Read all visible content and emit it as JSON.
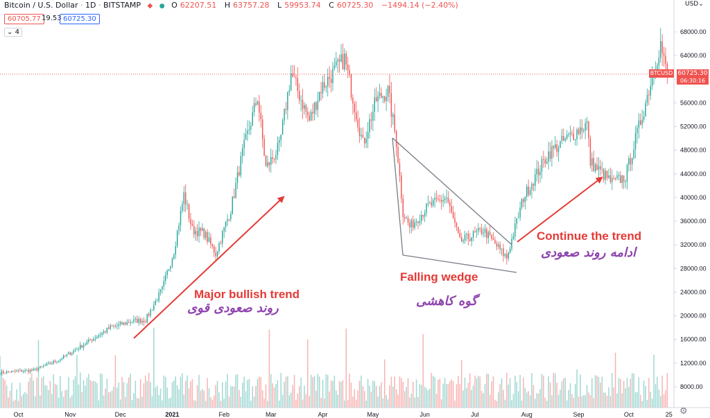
{
  "header": {
    "symbol": "Bitcoin / U.S. Dollar",
    "interval": "1D",
    "exchange": "BITSTAMP",
    "o_label": "O",
    "o_value": "62207.51",
    "h_label": "H",
    "h_value": "63757.28",
    "l_label": "L",
    "l_value": "59953.74",
    "c_label": "C",
    "c_value": "60725.30",
    "change": "−1494.14 (−2.40%)",
    "bid": "60705.77",
    "spread": "19.53",
    "ask": "60725.30",
    "indicators_count": "4",
    "currency": "USD"
  },
  "price_tag": {
    "symbol": "BTCUSD",
    "price": "60725.30",
    "countdown": "06:30:16"
  },
  "colors": {
    "up": "#26a69a",
    "down": "#ef5350",
    "arrow": "#e53935",
    "annotation_en": "#e53935",
    "annotation_fa": "#8e44ad",
    "wedge": "#787b86"
  },
  "annotations": {
    "major_en": "Major bullish trend",
    "major_fa": "روند صعودی قوی",
    "wedge_en": "Falling wedge",
    "wedge_fa": "گوه کاهشی",
    "continue_en": "Continue the trend",
    "continue_fa": "ادامه روند صعودی"
  },
  "chart_data": {
    "type": "candlestick",
    "xlabel": "",
    "ylabel": "",
    "ylim": [
      0,
      72000
    ],
    "y_ticks": [
      8000,
      12000,
      16000,
      20000,
      24000,
      28000,
      32000,
      36000,
      40000,
      44000,
      48000,
      52000,
      56000,
      60000,
      64000,
      68000
    ],
    "y_tick_labels": [
      "8000.00",
      "12000.00",
      "16000.00",
      "20000.00",
      "24000.00",
      "28000.00",
      "32000.00",
      "36000.00",
      "40000.00",
      "44000.00",
      "48000.00",
      "52000.00",
      "56000.00",
      "60000.00",
      "64000.00",
      "68000.00"
    ],
    "x_range": [
      "2020-09-20",
      "2021-10-28"
    ],
    "x_ticks": [
      "2020-10-01",
      "2020-11-01",
      "2020-12-01",
      "2021-01-01",
      "2021-02-01",
      "2021-03-01",
      "2021-04-01",
      "2021-05-01",
      "2021-06-01",
      "2021-07-01",
      "2021-08-01",
      "2021-09-01",
      "2021-10-01",
      "2021-10-25"
    ],
    "x_tick_labels": [
      "Oct",
      "Nov",
      "Dec",
      "2021",
      "Feb",
      "Mar",
      "Apr",
      "May",
      "Jun",
      "Jul",
      "Aug",
      "Sep",
      "Oct",
      "25"
    ],
    "last_price": 60725.3,
    "price_path": [
      [
        "2020-09-20",
        10400
      ],
      [
        "2020-10-10",
        10800
      ],
      [
        "2020-10-25",
        12500
      ],
      [
        "2020-11-10",
        15300
      ],
      [
        "2020-11-25",
        18000
      ],
      [
        "2020-12-08",
        19100
      ],
      [
        "2020-12-16",
        19300
      ],
      [
        "2020-12-26",
        24500
      ],
      [
        "2021-01-02",
        31000
      ],
      [
        "2021-01-08",
        40500
      ],
      [
        "2021-01-13",
        34500
      ],
      [
        "2021-01-20",
        34000
      ],
      [
        "2021-01-27",
        30500
      ],
      [
        "2021-02-05",
        38000
      ],
      [
        "2021-02-12",
        47500
      ],
      [
        "2021-02-21",
        57000
      ],
      [
        "2021-02-26",
        45000
      ],
      [
        "2021-03-06",
        48500
      ],
      [
        "2021-03-13",
        61000
      ],
      [
        "2021-03-24",
        53000
      ],
      [
        "2021-03-31",
        58500
      ],
      [
        "2021-04-14",
        63500
      ],
      [
        "2021-04-25",
        49000
      ],
      [
        "2021-05-03",
        56500
      ],
      [
        "2021-05-10",
        58000
      ],
      [
        "2021-05-15",
        49500
      ],
      [
        "2021-05-19",
        37500
      ],
      [
        "2021-05-23",
        35000
      ],
      [
        "2021-06-03",
        38500
      ],
      [
        "2021-06-14",
        40000
      ],
      [
        "2021-06-22",
        32500
      ],
      [
        "2021-07-06",
        34500
      ],
      [
        "2021-07-20",
        29800
      ],
      [
        "2021-07-30",
        40000
      ],
      [
        "2021-08-14",
        47500
      ],
      [
        "2021-08-23",
        49500
      ],
      [
        "2021-09-06",
        52500
      ],
      [
        "2021-09-08",
        46000
      ],
      [
        "2021-09-21",
        42500
      ],
      [
        "2021-09-29",
        43500
      ],
      [
        "2021-10-10",
        55000
      ],
      [
        "2021-10-20",
        66000
      ],
      [
        "2021-10-22",
        63000
      ],
      [
        "2021-10-24",
        60725
      ]
    ]
  }
}
